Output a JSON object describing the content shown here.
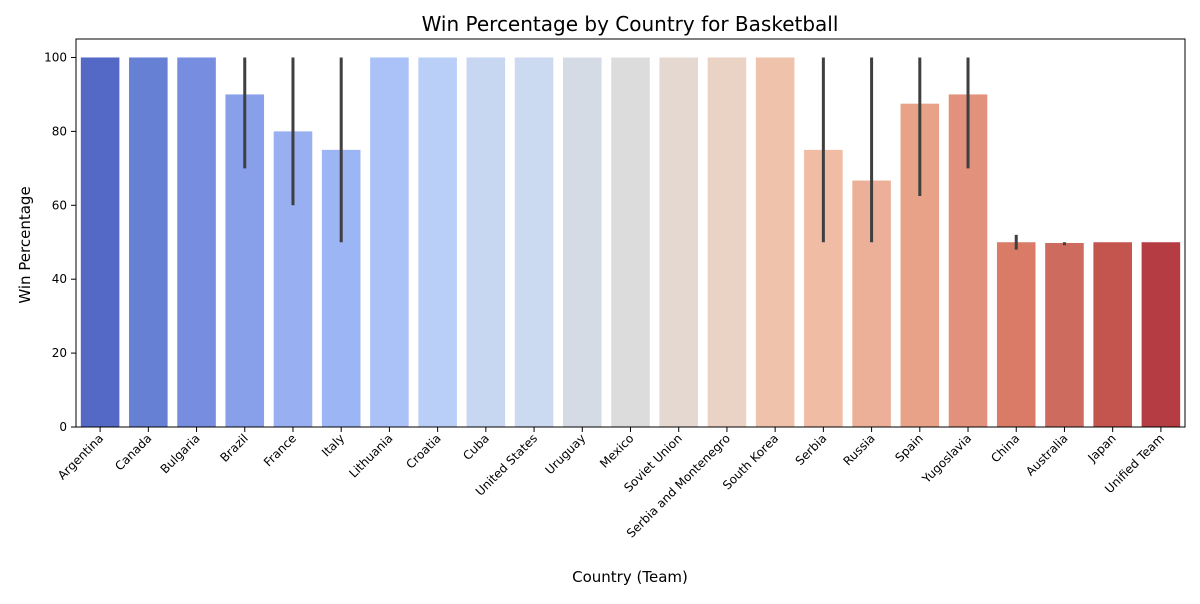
{
  "chart_data": {
    "type": "bar",
    "title": "Win Percentage by Country for Basketball",
    "xlabel": "Country (Team)",
    "ylabel": "Win Percentage",
    "ylim": [
      0,
      105
    ],
    "yticks": [
      0,
      20,
      40,
      60,
      80,
      100
    ],
    "grid": false,
    "legend": "none",
    "categories": [
      "Argentina",
      "Canada",
      "Bulgaria",
      "Brazil",
      "France",
      "Italy",
      "Lithuania",
      "Croatia",
      "Cuba",
      "United States",
      "Uruguay",
      "Mexico",
      "Soviet Union",
      "Serbia and Montenegro",
      "South Korea",
      "Serbia",
      "Russia",
      "Spain",
      "Yugoslavia",
      "China",
      "Australia",
      "Japan",
      "Unified Team"
    ],
    "values": [
      100,
      100,
      100,
      90,
      80,
      75,
      100,
      100,
      100,
      100,
      100,
      100,
      100,
      100,
      100,
      75,
      66.7,
      87.5,
      90,
      50,
      49.8,
      50,
      50
    ],
    "error_low": [
      null,
      null,
      null,
      70,
      60,
      50,
      null,
      null,
      null,
      null,
      null,
      null,
      null,
      null,
      null,
      50,
      50,
      62.5,
      70,
      48,
      49.2,
      null,
      null
    ],
    "error_high": [
      null,
      null,
      null,
      100,
      100,
      100,
      null,
      null,
      null,
      null,
      null,
      null,
      null,
      null,
      null,
      100,
      100,
      100,
      100,
      52,
      50,
      null,
      null
    ],
    "colors": [
      "#5469c5",
      "#6680d4",
      "#778de0",
      "#889fe9",
      "#98b0f2",
      "#9cb5f5",
      "#aac2f7",
      "#bacff7",
      "#c8d7f1",
      "#cbd9f1",
      "#d5dbe5",
      "#dcdcdc",
      "#e4d8d1",
      "#ead2c5",
      "#efc2ac",
      "#f0bda4",
      "#ecb099",
      "#e8a287",
      "#e2917c",
      "#da7b67",
      "#cd6b5f",
      "#c3544e",
      "#b53c43"
    ]
  }
}
